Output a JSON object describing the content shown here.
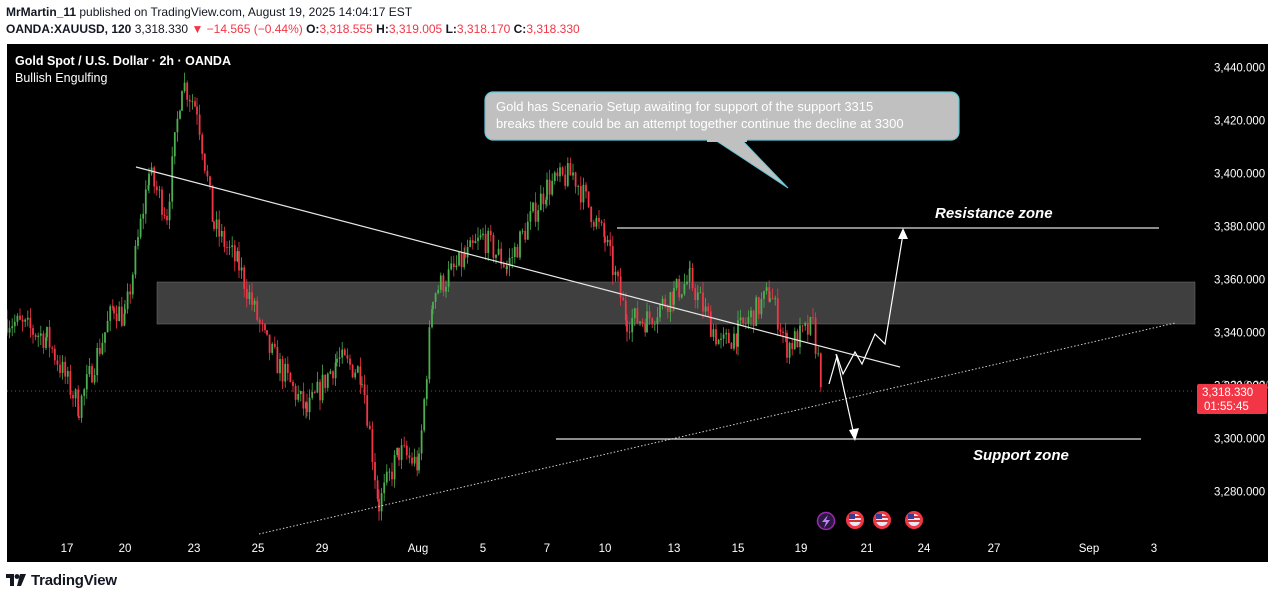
{
  "header": {
    "author": "MrMartin_11",
    "published_text": "published on TradingView.com, August 19, 2025 14:04:17 EST",
    "symbol": "OANDA:XAUUSD, 120",
    "last": "3,318.330",
    "arrow": "▼",
    "change": "−14.565 (−0.44%)",
    "o_label": "O:",
    "o_value": "3,318.555",
    "h_label": "H:",
    "h_value": "3,319.005",
    "l_label": "L:",
    "l_value": "3,318.170",
    "c_label": "C:",
    "c_value": "3,318.330"
  },
  "legend": {
    "title": "Gold Spot / U.S. Dollar · 2h · OANDA",
    "indicator": "Bullish Engulfing"
  },
  "annotations": {
    "callout_line1": "Gold has Scenario Setup awaiting for support of the support 3315",
    "callout_line2": "breaks there could be an attempt together continue the decline at 3300",
    "resistance_label": "Resistance zone",
    "support_label": "Support zone"
  },
  "price_badge": {
    "price": "3,318.330",
    "countdown": "01:55:45",
    "hidden_label": "3,318.330"
  },
  "footer": {
    "brand": "TradingView"
  },
  "colors": {
    "up": "#4caf50",
    "down": "#f23645",
    "zone": "#4a4a4a",
    "background": "#000000"
  },
  "chart_data": {
    "type": "candlestick",
    "symbol": "XAUUSD",
    "timeframe": "2h",
    "y_ticks": [
      "3,440.000",
      "3,420.000",
      "3,400.000",
      "3,380.000",
      "3,360.000",
      "3,340.000",
      "3,320.000",
      "3,300.000",
      "3,280.000"
    ],
    "y_values": [
      3440,
      3420,
      3400,
      3380,
      3360,
      3340,
      3320,
      3300,
      3280
    ],
    "ylim": [
      3268,
      3450
    ],
    "x_ticks": [
      "17",
      "20",
      "23",
      "25",
      "29",
      "Aug",
      "5",
      "7",
      "10",
      "13",
      "15",
      "19",
      "21",
      "24",
      "27",
      "Sep",
      "3"
    ],
    "price_path": [
      {
        "t": "Jul 16",
        "p": 3345
      },
      {
        "t": "Jul 17",
        "p": 3338
      },
      {
        "t": "Jul 17",
        "p": 3312
      },
      {
        "t": "Jul 18",
        "p": 3350
      },
      {
        "t": "Jul 20",
        "p": 3345
      },
      {
        "t": "Jul 21",
        "p": 3400
      },
      {
        "t": "Jul 22",
        "p": 3385
      },
      {
        "t": "Jul 22",
        "p": 3435
      },
      {
        "t": "Jul 23",
        "p": 3425
      },
      {
        "t": "Jul 24",
        "p": 3380
      },
      {
        "t": "Jul 25",
        "p": 3365
      },
      {
        "t": "Jul 25",
        "p": 3335
      },
      {
        "t": "Jul 28",
        "p": 3310
      },
      {
        "t": "Jul 29",
        "p": 3330
      },
      {
        "t": "Jul 30",
        "p": 3325
      },
      {
        "t": "Jul 31",
        "p": 3275
      },
      {
        "t": "Aug 1",
        "p": 3295
      },
      {
        "t": "Aug 1",
        "p": 3290
      },
      {
        "t": "Aug 1",
        "p": 3355
      },
      {
        "t": "Aug 4",
        "p": 3368
      },
      {
        "t": "Aug 5",
        "p": 3376
      },
      {
        "t": "Aug 6",
        "p": 3365
      },
      {
        "t": "Aug 7",
        "p": 3395
      },
      {
        "t": "Aug 8",
        "p": 3400
      },
      {
        "t": "Aug 10",
        "p": 3375
      },
      {
        "t": "Aug 11",
        "p": 3345
      },
      {
        "t": "Aug 12",
        "p": 3345
      },
      {
        "t": "Aug 13",
        "p": 3355
      },
      {
        "t": "Aug 14",
        "p": 3360
      },
      {
        "t": "Aug 14",
        "p": 3335
      },
      {
        "t": "Aug 15",
        "p": 3340
      },
      {
        "t": "Aug 17",
        "p": 3355
      },
      {
        "t": "Aug 18",
        "p": 3335
      },
      {
        "t": "Aug 19",
        "p": 3342
      },
      {
        "t": "Aug 19",
        "p": 3318.33
      }
    ],
    "resistance_level": 3380,
    "support_level": 3300,
    "zone": [
      3344,
      3359
    ],
    "current_price": 3318.33,
    "projection_up": [
      {
        "t": "Aug 19",
        "p": 3318
      },
      {
        "t": "Aug 20",
        "p": 3333
      },
      {
        "t": "Aug 20",
        "p": 3328
      },
      {
        "t": "Aug 21",
        "p": 3342
      },
      {
        "t": "Aug 21",
        "p": 3338
      },
      {
        "t": "Aug 22",
        "p": 3349
      },
      {
        "t": "Aug 22",
        "p": 3342
      },
      {
        "t": "Aug 23",
        "p": 3378
      }
    ],
    "projection_down": [
      {
        "t": "Aug 20",
        "p": 3334
      },
      {
        "t": "Aug 20",
        "p": 3300
      }
    ],
    "descending_trendline": [
      {
        "t": "Jul 20",
        "p": 3403
      },
      {
        "t": "Aug 22",
        "p": 3328
      }
    ],
    "ascending_trendline": [
      {
        "t": "Jul 25",
        "p": 3270
      },
      {
        "t": "Sep 3",
        "p": 3343
      }
    ]
  }
}
